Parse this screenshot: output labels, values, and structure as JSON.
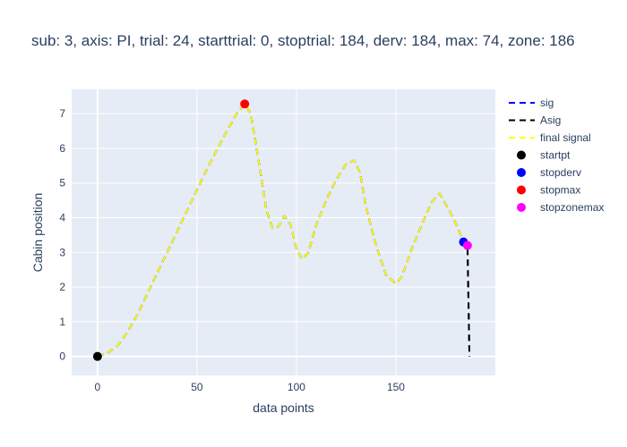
{
  "chart_data": {
    "type": "line",
    "title": "sub: 3, axis: PI, trial: 24, starttrial: 0, stoptrial: 184, derv: 184, max: 74, zone: 186",
    "xlabel": "data points",
    "ylabel": "Cabin position",
    "xlim": [
      -13,
      200
    ],
    "ylim": [
      -0.55,
      7.7
    ],
    "xticks": [
      0,
      50,
      100,
      150
    ],
    "yticks": [
      0,
      1,
      2,
      3,
      4,
      5,
      6,
      7
    ],
    "grid": true,
    "legend_position": "top-right",
    "colors": {
      "plot_bg": "#e5ecf6",
      "grid": "#ffffff",
      "sig": "#0000ff",
      "asig": "#000000",
      "final_signal": "#ffff00",
      "startpt": "#000000",
      "stopderv": "#0000ff",
      "stopmax": "#ff0000",
      "stopzonemax": "#ff00ff"
    },
    "series": [
      {
        "name": "sig",
        "kind": "line",
        "dash": true,
        "color": "#0000ff",
        "x": [
          0,
          5,
          10,
          15,
          20,
          25,
          30,
          35,
          40,
          45,
          50,
          55,
          60,
          65,
          70,
          74,
          77,
          80,
          85,
          88,
          91,
          94,
          97,
          100,
          103,
          106,
          110,
          115,
          120,
          125,
          129,
          132,
          135,
          140,
          145,
          150,
          153,
          158,
          163,
          168,
          172,
          176,
          180,
          184,
          186,
          187
        ],
        "y": [
          0,
          0.1,
          0.3,
          0.7,
          1.2,
          1.8,
          2.4,
          3.0,
          3.6,
          4.2,
          4.8,
          5.4,
          5.95,
          6.5,
          7.0,
          7.28,
          7.0,
          6.0,
          4.2,
          3.7,
          3.75,
          4.05,
          3.8,
          3.1,
          2.8,
          3.0,
          3.8,
          4.5,
          5.1,
          5.55,
          5.65,
          5.3,
          4.3,
          3.2,
          2.35,
          2.1,
          2.3,
          3.1,
          3.8,
          4.45,
          4.7,
          4.3,
          3.85,
          3.3,
          3.2,
          0
        ]
      },
      {
        "name": "Asig",
        "kind": "line",
        "dash": true,
        "color": "#000000",
        "x": [
          0,
          5,
          10,
          15,
          20,
          25,
          30,
          35,
          40,
          45,
          50,
          55,
          60,
          65,
          70,
          74,
          77,
          80,
          85,
          88,
          91,
          94,
          97,
          100,
          103,
          106,
          110,
          115,
          120,
          125,
          129,
          132,
          135,
          140,
          145,
          150,
          153,
          158,
          163,
          168,
          172,
          176,
          180,
          184,
          186,
          187
        ],
        "y": [
          0,
          0.1,
          0.3,
          0.7,
          1.2,
          1.8,
          2.4,
          3.0,
          3.6,
          4.2,
          4.8,
          5.4,
          5.95,
          6.5,
          7.0,
          7.28,
          7.0,
          6.0,
          4.2,
          3.7,
          3.75,
          4.05,
          3.8,
          3.1,
          2.8,
          3.0,
          3.8,
          4.5,
          5.1,
          5.55,
          5.65,
          5.3,
          4.3,
          3.2,
          2.35,
          2.1,
          2.3,
          3.1,
          3.8,
          4.45,
          4.7,
          4.3,
          3.85,
          3.3,
          3.2,
          0
        ]
      },
      {
        "name": "final signal",
        "kind": "line",
        "dash": true,
        "color": "#ffff00",
        "x": [
          0,
          5,
          10,
          15,
          20,
          25,
          30,
          35,
          40,
          45,
          50,
          55,
          60,
          65,
          70,
          74,
          77,
          80,
          85,
          88,
          91,
          94,
          97,
          100,
          103,
          106,
          110,
          115,
          120,
          125,
          129,
          132,
          135,
          140,
          145,
          150,
          153,
          158,
          163,
          168,
          172,
          176,
          180,
          184,
          186
        ],
        "y": [
          0,
          0.1,
          0.3,
          0.7,
          1.2,
          1.8,
          2.4,
          3.0,
          3.6,
          4.2,
          4.8,
          5.4,
          5.95,
          6.5,
          7.0,
          7.28,
          7.0,
          6.0,
          4.2,
          3.7,
          3.75,
          4.05,
          3.8,
          3.1,
          2.8,
          3.0,
          3.8,
          4.5,
          5.1,
          5.55,
          5.65,
          5.3,
          4.3,
          3.2,
          2.35,
          2.1,
          2.3,
          3.1,
          3.8,
          4.45,
          4.7,
          4.3,
          3.85,
          3.3,
          3.2
        ]
      },
      {
        "name": "startpt",
        "kind": "marker",
        "color": "#000000",
        "x": [
          0
        ],
        "y": [
          0
        ]
      },
      {
        "name": "stopderv",
        "kind": "marker",
        "color": "#0000ff",
        "x": [
          184
        ],
        "y": [
          3.3
        ]
      },
      {
        "name": "stopmax",
        "kind": "marker",
        "color": "#ff0000",
        "x": [
          74
        ],
        "y": [
          7.28
        ]
      },
      {
        "name": "stopzonemax",
        "kind": "marker",
        "color": "#ff00ff",
        "x": [
          186
        ],
        "y": [
          3.2
        ]
      }
    ]
  }
}
